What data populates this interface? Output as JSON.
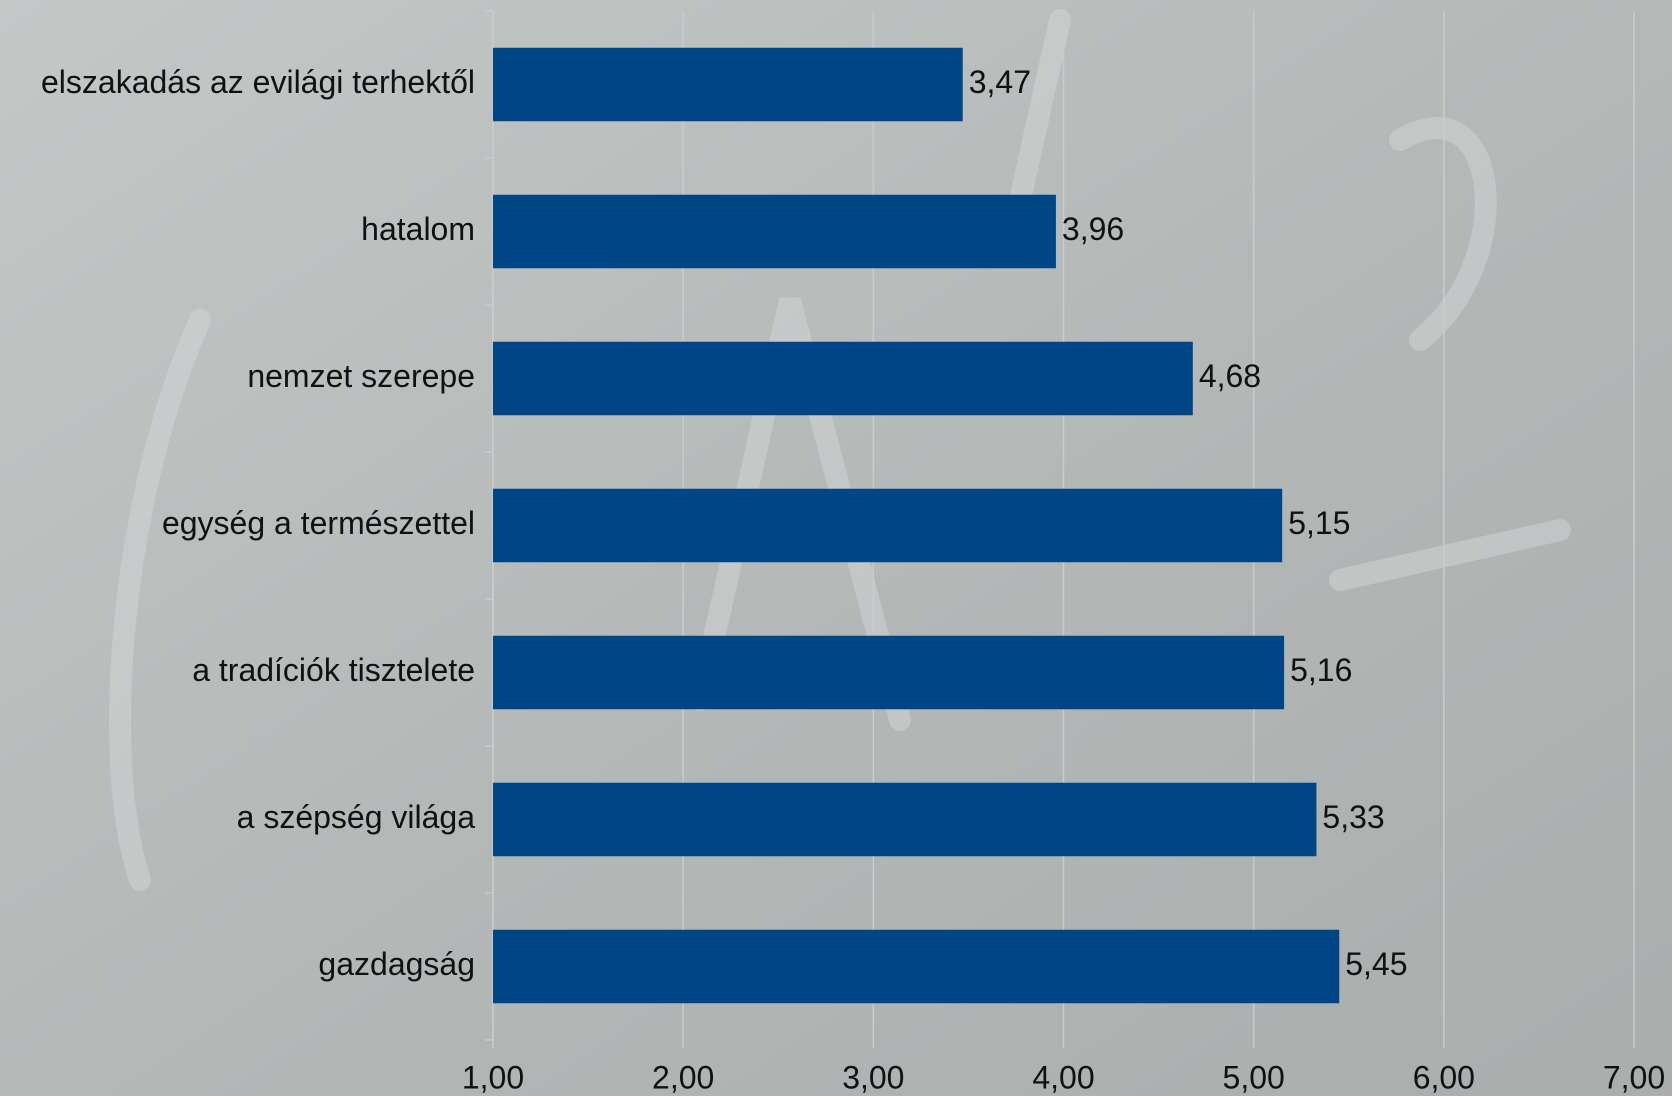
{
  "chart_data": {
    "type": "hbar",
    "categories": [
      "elszakadás az evilági terhektől",
      "hatalom",
      "nemzet szerepe",
      "egység a természettel",
      "a tradíciók tisztelete",
      "a szépség világa",
      "gazdagság"
    ],
    "values": [
      3.47,
      3.96,
      4.68,
      5.15,
      5.16,
      5.33,
      5.45
    ],
    "value_labels": [
      "3,47",
      "3,96",
      "4,68",
      "5,15",
      "5,16",
      "5,33",
      "5,45"
    ],
    "color": "#004586",
    "xlim": [
      1,
      7
    ],
    "xticks": [
      {
        "value": 1,
        "label": "1,00"
      },
      {
        "value": 2,
        "label": "2,00"
      },
      {
        "value": 3,
        "label": "3,00"
      },
      {
        "value": 4,
        "label": "4,00"
      },
      {
        "value": 5,
        "label": "5,00"
      },
      {
        "value": 6,
        "label": "6,00"
      },
      {
        "value": 7,
        "label": "7,00"
      }
    ],
    "grid": true
  }
}
